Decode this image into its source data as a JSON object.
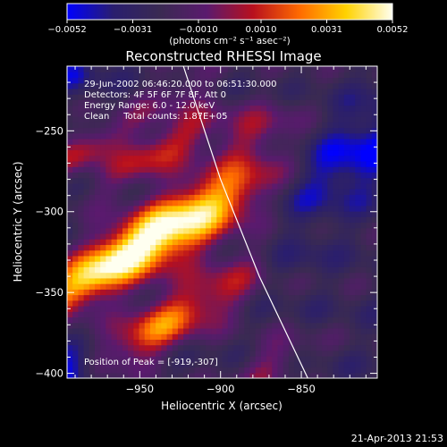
{
  "chart_data": {
    "type": "heatmap",
    "title": "Reconstructed RHESSI Image",
    "xlabel": "Heliocentric X (arcsec)",
    "ylabel": "Heliocentric Y (arcsec)",
    "xlim": [
      -995,
      -803
    ],
    "ylim": [
      -403,
      -210
    ],
    "x_ticks": [
      {
        "value": -950,
        "label": "−950"
      },
      {
        "value": -900,
        "label": "−900"
      },
      {
        "value": -850,
        "label": "−850"
      }
    ],
    "y_ticks": [
      {
        "value": -250,
        "label": "−250"
      },
      {
        "value": -300,
        "label": "−300"
      },
      {
        "value": -350,
        "label": "−350"
      },
      {
        "value": -400,
        "label": "−400"
      }
    ],
    "colorbar": {
      "min": -0.0052,
      "max": 0.0052,
      "ticks": [
        {
          "value": -0.0052,
          "label": "−0.0052"
        },
        {
          "value": -0.0031,
          "label": "−0.0031"
        },
        {
          "value": -0.001,
          "label": "−0.0010"
        },
        {
          "value": 0.001,
          "label": "0.0010"
        },
        {
          "value": 0.0031,
          "label": "0.0031"
        },
        {
          "value": 0.0052,
          "label": "0.0052"
        }
      ],
      "label": "(photons cm⁻² s⁻¹ asec⁻²)",
      "colors": [
        "#0000ff",
        "#2a1e6e",
        "#3a2a52",
        "#5a1a6e",
        "#b8101e",
        "#ff6a00",
        "#ffd200",
        "#fffff0"
      ]
    },
    "info_lines": [
      "29-Jun-2002 06:46:20.000 to 06:51:30.000",
      "Detectors: 4F 5F 6F 7F 8F, Att 0",
      "Energy Range: 6.0 - 12.0 keV",
      "Clean     Total counts: 1.87E+05"
    ],
    "peak_label": "Position of Peak = [-919,-307]",
    "peak": {
      "x": -919,
      "y": -307
    },
    "limb_curve": [
      [
        -923,
        -210
      ],
      [
        -900,
        -280
      ],
      [
        -876,
        -340
      ],
      [
        -846,
        -403
      ]
    ],
    "grid": false
  },
  "footer": {
    "date": "21-Apr-2013 21:53"
  }
}
